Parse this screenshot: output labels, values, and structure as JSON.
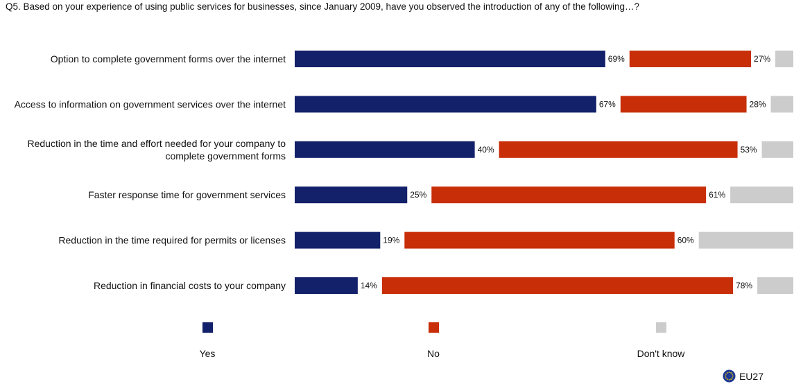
{
  "question": "Q5. Based on your experience of using public services for businesses, since January 2009, have you observed the introduction of any of the following…?",
  "colors": {
    "yes": "#13206a",
    "no": "#c82e08",
    "dont_know": "#cccccc"
  },
  "legend": {
    "yes": "Yes",
    "no": "No",
    "dont_know": "Don't know"
  },
  "footer": {
    "region": "EU27"
  },
  "chart_data": {
    "type": "bar",
    "orientation": "horizontal",
    "stacked": true,
    "unit": "%",
    "categories": [
      [
        "Option to complete government forms over the internet"
      ],
      [
        "Access to information on government services over the internet"
      ],
      [
        "Reduction in the time and effort needed for your company to",
        "complete government forms"
      ],
      [
        "Faster response time for government services"
      ],
      [
        "Reduction in the time required for permits or licenses"
      ],
      [
        "Reduction in financial costs to your company"
      ]
    ],
    "series": [
      {
        "name": "Yes",
        "values": [
          69,
          67,
          40,
          25,
          19,
          14
        ]
      },
      {
        "name": "No",
        "values": [
          27,
          28,
          53,
          61,
          60,
          78
        ]
      },
      {
        "name": "Don't know",
        "values": [
          4,
          5,
          7,
          14,
          21,
          8
        ]
      }
    ],
    "legend_position": "bottom"
  }
}
